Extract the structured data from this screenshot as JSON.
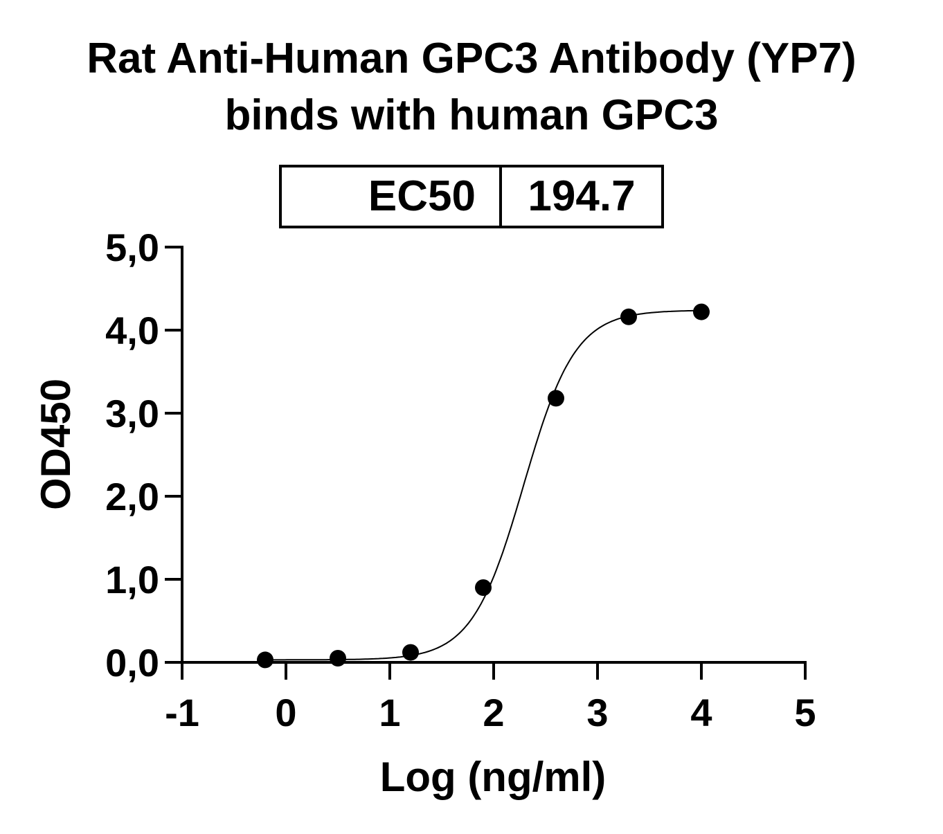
{
  "chart_data": {
    "type": "scatter",
    "title": "Rat Anti-Human GPC3 Antibody (YP7)",
    "subtitle": "binds with human GPC3",
    "xlabel": "Log (ng/ml)",
    "ylabel": "OD450",
    "xlim": [
      -1,
      5
    ],
    "ylim": [
      0,
      5
    ],
    "x_ticks": [
      -1,
      0,
      1,
      2,
      3,
      4,
      5
    ],
    "x_tick_labels": [
      "-1",
      "0",
      "1",
      "2",
      "3",
      "4",
      "5"
    ],
    "y_ticks": [
      0,
      1,
      2,
      3,
      4,
      5
    ],
    "y_tick_labels": [
      "0,0",
      "1,0",
      "2,0",
      "3,0",
      "4,0",
      "5,0"
    ],
    "grid": false,
    "series": [
      {
        "x": [
          -0.2,
          0.5,
          1.2,
          1.9,
          2.6,
          3.3,
          4.0
        ],
        "y": [
          0.03,
          0.05,
          0.12,
          0.9,
          3.18,
          4.16,
          4.22
        ]
      }
    ],
    "fit_curve": {
      "model": "4PL sigmoid",
      "bottom": 0.03,
      "top": 4.24,
      "log_ec50": 2.289,
      "hill": 1.75,
      "x_range": [
        -0.2,
        4.0
      ]
    },
    "annotation": {
      "label": "EC50",
      "value": "194.7"
    },
    "colors": {
      "points": "#000000",
      "line": "#000000",
      "background": "#ffffff"
    }
  }
}
